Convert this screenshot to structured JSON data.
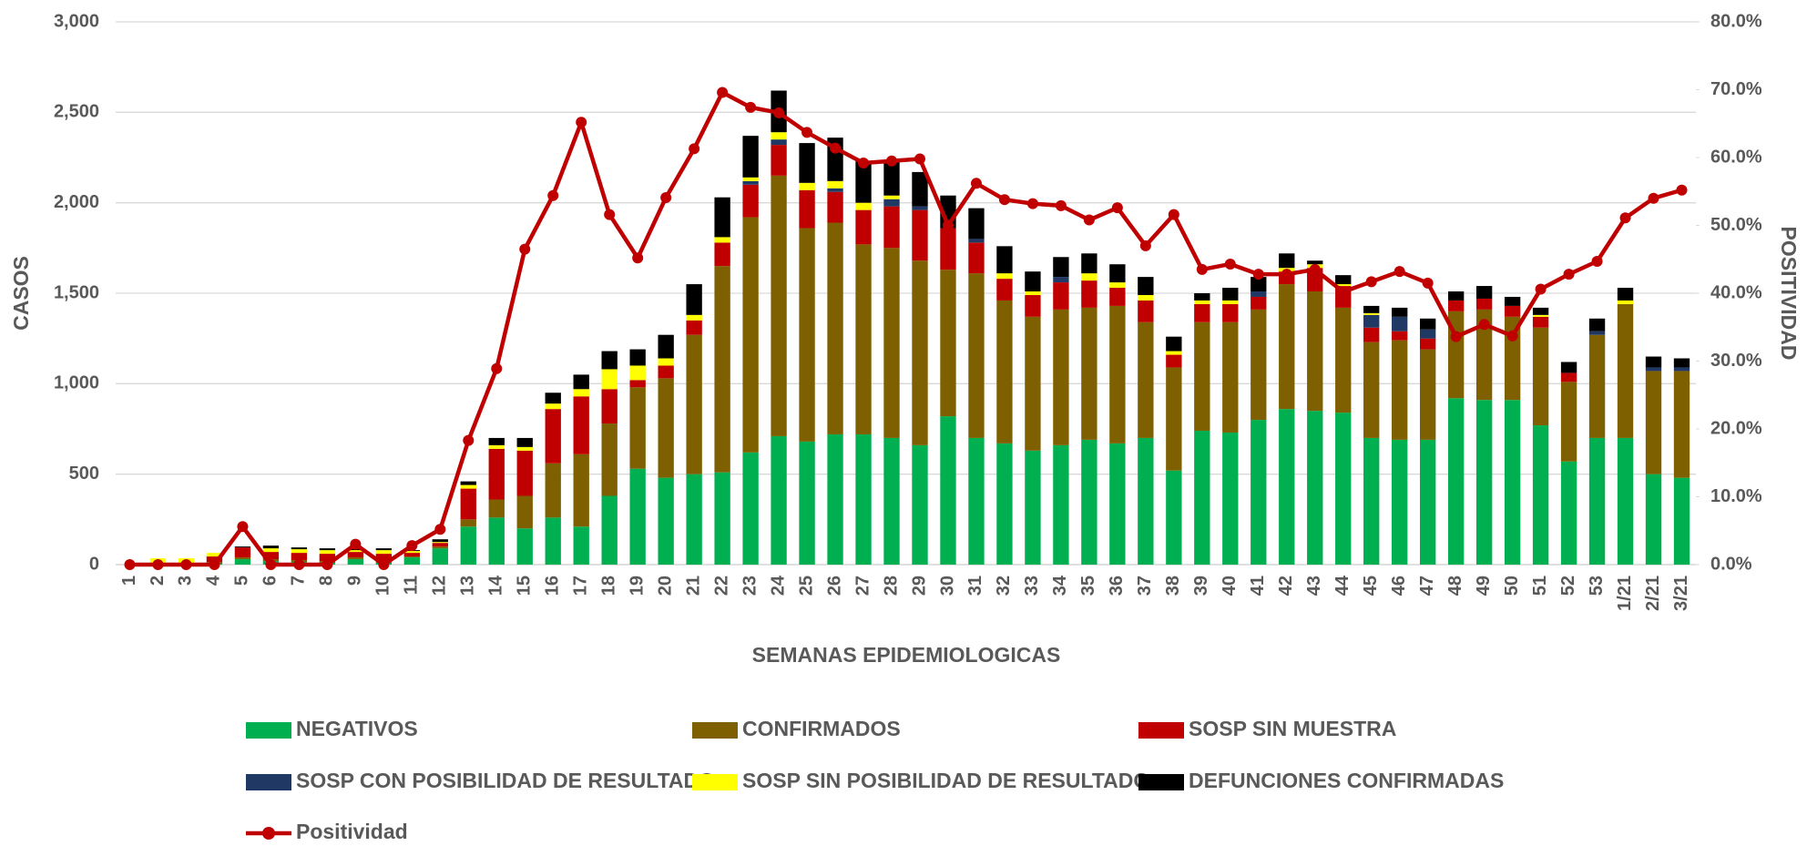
{
  "chart_data": {
    "type": "bar",
    "stacked": true,
    "x_label": "SEMANAS EPIDEMIOLOGICAS",
    "y_label": "CASOS",
    "y2_label": "POSITIVIDAD",
    "categories": [
      "1",
      "2",
      "3",
      "4",
      "5",
      "6",
      "7",
      "8",
      "9",
      "10",
      "11",
      "12",
      "13",
      "14",
      "15",
      "16",
      "17",
      "18",
      "19",
      "20",
      "21",
      "22",
      "23",
      "24",
      "25",
      "26",
      "27",
      "28",
      "29",
      "30",
      "31",
      "32",
      "33",
      "34",
      "35",
      "36",
      "37",
      "38",
      "39",
      "40",
      "41",
      "42",
      "43",
      "44",
      "45",
      "46",
      "47",
      "48",
      "49",
      "50",
      "51",
      "52",
      "53",
      "1/21",
      "2/21",
      "3/21"
    ],
    "series": [
      {
        "name": "NEGATIVOS",
        "color": "#00b050",
        "values": [
          0,
          5,
          5,
          5,
          30,
          20,
          15,
          10,
          30,
          10,
          40,
          90,
          210,
          260,
          200,
          260,
          210,
          380,
          530,
          480,
          500,
          510,
          620,
          710,
          680,
          720,
          720,
          700,
          660,
          820,
          700,
          670,
          630,
          660,
          690,
          670,
          700,
          520,
          740,
          730,
          800,
          860,
          850,
          840,
          700,
          690,
          690,
          920,
          910,
          910,
          770,
          570,
          700,
          700,
          500,
          480
        ]
      },
      {
        "name": "CONFIRMADOS",
        "color": "#7f6000",
        "values": [
          0,
          5,
          5,
          10,
          10,
          10,
          10,
          10,
          10,
          10,
          5,
          10,
          40,
          100,
          180,
          300,
          400,
          400,
          450,
          550,
          770,
          1140,
          1300,
          1440,
          1180,
          1170,
          1050,
          1050,
          1020,
          810,
          910,
          790,
          740,
          750,
          730,
          760,
          640,
          570,
          600,
          610,
          610,
          690,
          660,
          580,
          530,
          550,
          500,
          480,
          500,
          460,
          540,
          440,
          570,
          740,
          570,
          590
        ]
      },
      {
        "name": "SOSP SIN MUESTRA",
        "color": "#c00000",
        "values": [
          0,
          0,
          0,
          30,
          55,
          40,
          40,
          40,
          30,
          40,
          20,
          20,
          170,
          280,
          250,
          300,
          320,
          190,
          40,
          70,
          80,
          130,
          180,
          170,
          210,
          170,
          190,
          230,
          280,
          230,
          170,
          120,
          120,
          150,
          150,
          100,
          120,
          70,
          100,
          100,
          70,
          70,
          130,
          120,
          80,
          50,
          60,
          60,
          60,
          60,
          60,
          50,
          0,
          0,
          0,
          0
        ]
      },
      {
        "name": "SOSP CON POSIBILIDAD DE RESULTADO",
        "color": "#1f3864",
        "values": [
          0,
          0,
          0,
          0,
          0,
          0,
          0,
          0,
          0,
          0,
          0,
          0,
          0,
          0,
          0,
          0,
          0,
          0,
          0,
          0,
          0,
          0,
          20,
          30,
          0,
          20,
          0,
          40,
          20,
          0,
          20,
          0,
          0,
          30,
          0,
          0,
          0,
          0,
          0,
          0,
          30,
          0,
          0,
          0,
          70,
          80,
          50,
          0,
          0,
          0,
          0,
          0,
          20,
          0,
          20,
          20
        ]
      },
      {
        "name": "SOSP SIN POSIBILIDAD DE RESULTADO",
        "color": "#ffff00",
        "values": [
          0,
          25,
          25,
          20,
          0,
          20,
          20,
          20,
          10,
          20,
          10,
          5,
          20,
          20,
          20,
          30,
          40,
          110,
          80,
          40,
          30,
          30,
          20,
          40,
          40,
          40,
          40,
          20,
          0,
          0,
          0,
          30,
          20,
          0,
          40,
          30,
          30,
          20,
          20,
          20,
          0,
          20,
          20,
          10,
          10,
          0,
          0,
          0,
          0,
          0,
          10,
          0,
          0,
          20,
          0,
          0
        ]
      },
      {
        "name": "DEFUNCIONES CONFIRMADAS",
        "color": "#000000",
        "values": [
          0,
          0,
          0,
          0,
          5,
          15,
          10,
          10,
          10,
          10,
          5,
          15,
          20,
          40,
          50,
          60,
          80,
          100,
          90,
          130,
          170,
          220,
          230,
          230,
          220,
          240,
          230,
          190,
          190,
          180,
          170,
          150,
          110,
          110,
          110,
          100,
          100,
          80,
          40,
          70,
          80,
          80,
          20,
          50,
          40,
          50,
          60,
          50,
          70,
          50,
          40,
          60,
          70,
          70,
          60,
          50
        ]
      },
      {
        "name": "Positividad",
        "type": "line",
        "axis": "y2",
        "color": "#c00000",
        "values": [
          0,
          0,
          0,
          0,
          5.6,
          0,
          0,
          0,
          3,
          0,
          2.8,
          5.2,
          18.3,
          28.9,
          46.5,
          54.4,
          65.2,
          51.6,
          45.2,
          54.1,
          61.3,
          69.6,
          67.4,
          66.6,
          63.7,
          61.4,
          59.2,
          59.5,
          59.8,
          50.0,
          56.2,
          53.8,
          53.2,
          52.9,
          50.8,
          52.6,
          47.0,
          51.6,
          43.5,
          44.3,
          42.8,
          42.8,
          43.5,
          40.2,
          41.7,
          43.2,
          41.5,
          33.6,
          35.4,
          33.7,
          40.6,
          42.8,
          44.7,
          51.1,
          54.0,
          55.2
        ]
      }
    ],
    "ylim": [
      0,
      3000
    ],
    "yticks": [
      0,
      500,
      {
        "value": 1000,
        "label": "1,000"
      },
      {
        "value": 1500,
        "label": "1,500"
      },
      {
        "value": 2000,
        "label": "2,000"
      },
      {
        "value": 2500,
        "label": "2,500"
      },
      {
        "value": 3000,
        "label": "3,000"
      }
    ],
    "y2lim": [
      0,
      80
    ],
    "y2ticks": [
      {
        "value": 0,
        "label": "0.0%"
      },
      {
        "value": 10,
        "label": "10.0%"
      },
      {
        "value": 20,
        "label": "20.0%"
      },
      {
        "value": 30,
        "label": "30.0%"
      },
      {
        "value": 40,
        "label": "40.0%"
      },
      {
        "value": 50,
        "label": "50.0%"
      },
      {
        "value": 60,
        "label": "60.0%"
      },
      {
        "value": 70,
        "label": "70.0%"
      },
      {
        "value": 80,
        "label": "80.0%"
      }
    ],
    "grid": true,
    "legend": "bottom"
  }
}
